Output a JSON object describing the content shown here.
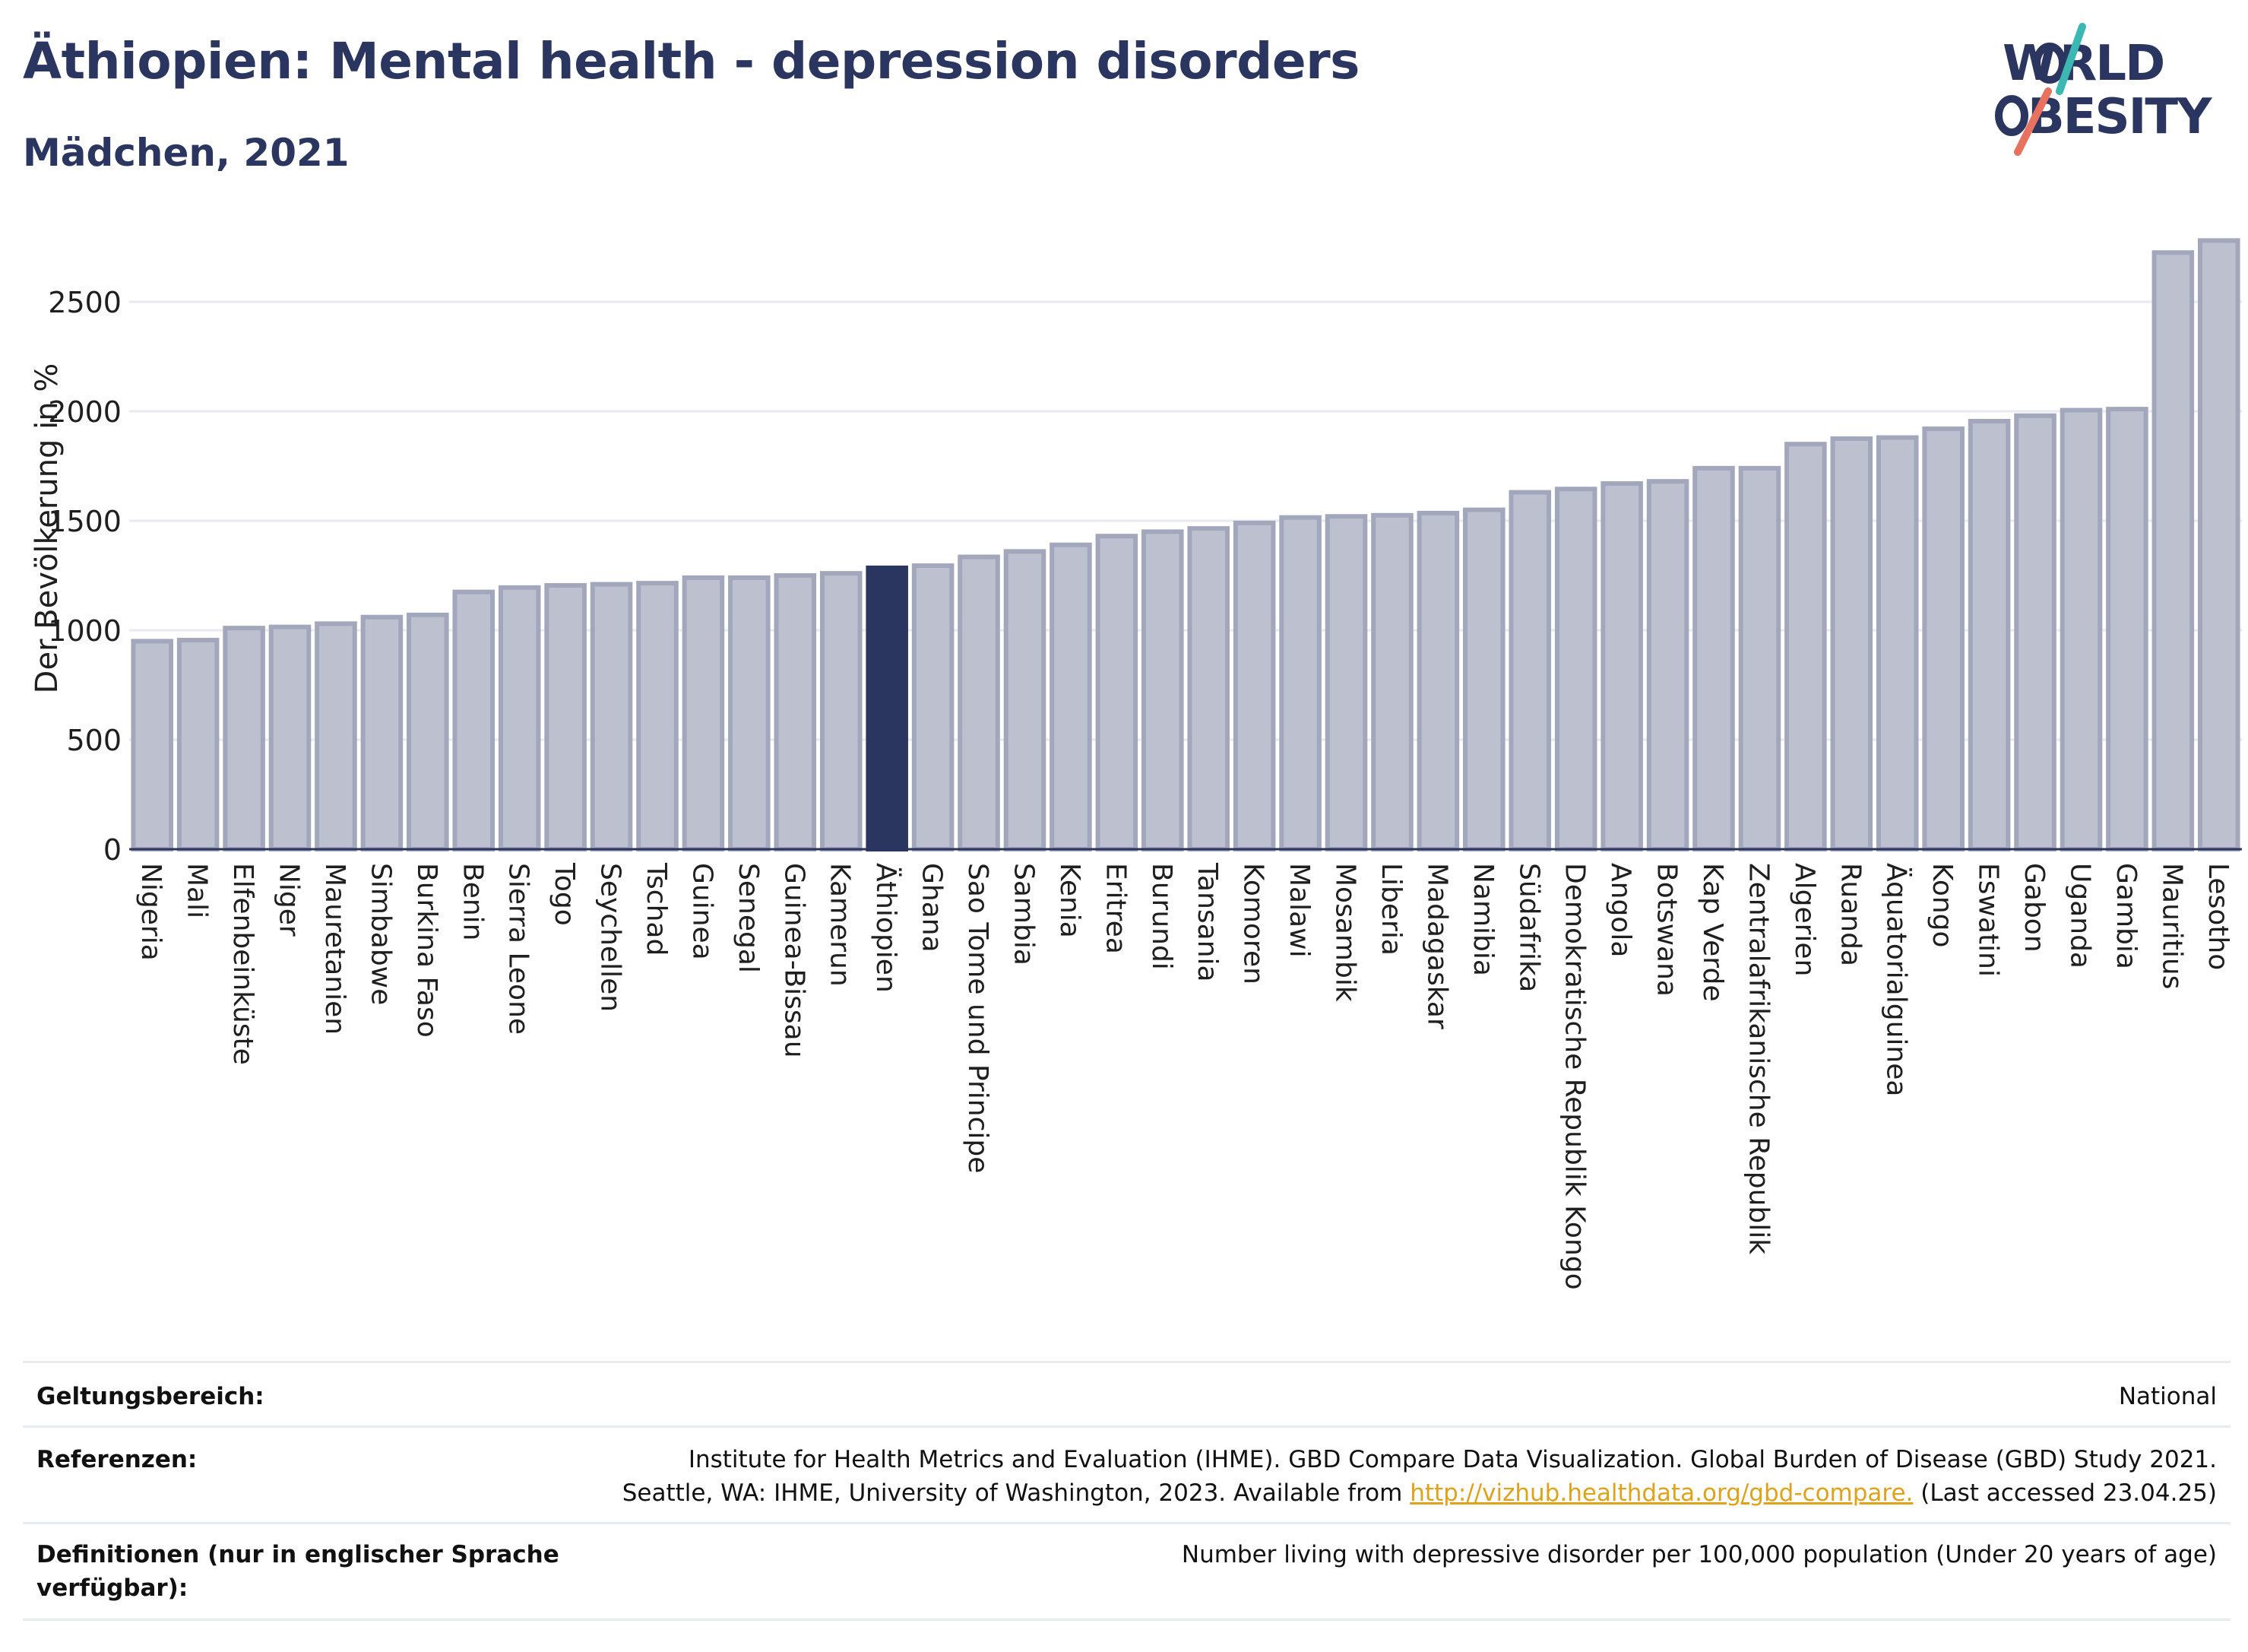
{
  "header": {
    "title": "Äthiopien: Mental health - depression disorders",
    "subtitle": "Mädchen, 2021"
  },
  "logo": {
    "line1": "WORLD",
    "line2": "OBESITY"
  },
  "chart_data": {
    "type": "bar",
    "ylabel": "Der Bevölkerung in %",
    "ylim": [
      0,
      2850
    ],
    "yticks": [
      0,
      500,
      1000,
      1500,
      2000,
      2500
    ],
    "grid": true,
    "highlight_category": "Äthiopien",
    "colors": {
      "bar": "#bcc0cf",
      "bar_border": "#a2a7bc",
      "highlight": "#2b3660",
      "grid": "#e8eaef",
      "axis": "#2b3660"
    },
    "categories": [
      "Nigeria",
      "Mali",
      "Elfenbeinküste",
      "Niger",
      "Mauretanien",
      "Simbabwe",
      "Burkina Faso",
      "Benin",
      "Sierra Leone",
      "Togo",
      "Seychellen",
      "Tschad",
      "Guinea",
      "Senegal",
      "Guinea-Bissau",
      "Kamerun",
      "Äthiopien",
      "Ghana",
      "Sao Tome und Principe",
      "Sambia",
      "Kenia",
      "Eritrea",
      "Burundi",
      "Tansania",
      "Komoren",
      "Malawi",
      "Mosambik",
      "Liberia",
      "Madagaskar",
      "Namibia",
      "Südafrika",
      "Demokratische Republik Kongo",
      "Angola",
      "Botswana",
      "Kap Verde",
      "Zentralafrikanische Republik",
      "Algerien",
      "Ruanda",
      "Äquatorialguinea",
      "Kongo",
      "Eswatini",
      "Gabon",
      "Uganda",
      "Gambia",
      "Mauritius",
      "Lesotho"
    ],
    "values": [
      950,
      955,
      1010,
      1015,
      1030,
      1060,
      1070,
      1175,
      1195,
      1205,
      1210,
      1215,
      1240,
      1240,
      1250,
      1260,
      1285,
      1295,
      1335,
      1360,
      1390,
      1430,
      1450,
      1465,
      1490,
      1515,
      1520,
      1525,
      1535,
      1550,
      1630,
      1645,
      1670,
      1680,
      1740,
      1740,
      1850,
      1875,
      1880,
      1920,
      1955,
      1980,
      2005,
      2010,
      2725,
      2780
    ]
  },
  "info": [
    {
      "key": "Geltungsbereich:",
      "value": "National"
    },
    {
      "key": "Referenzen:",
      "value_line1": "Institute for Health Metrics and Evaluation (IHME). GBD Compare Data Visualization. Global Burden of Disease (GBD) Study 2021.",
      "value_line2_prefix": "Seattle, WA: IHME, University of Washington, 2023. Available from ",
      "link": "http://vizhub.healthdata.org/gbd-compare.",
      "value_line2_suffix": " (Last accessed 23.04.25)"
    },
    {
      "key": "Definitionen (nur in englischer Sprache verfügbar):",
      "value": "Number living with depressive disorder per 100,000 population (Under 20 years of age)"
    }
  ]
}
